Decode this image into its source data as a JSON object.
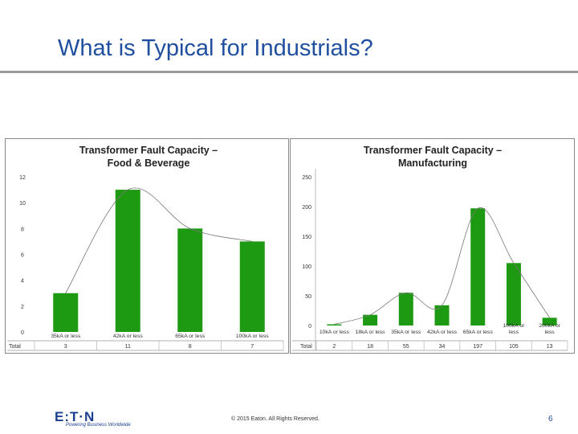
{
  "slide": {
    "title": "What is Typical for Industrials?",
    "footer": {
      "logo": "E:T·N",
      "tagline": "Powering Business Worldwide",
      "copyright": "© 2015 Eaton. All Rights Reserved.",
      "page_number": "6"
    }
  },
  "colors": {
    "bar": "#1d9a12",
    "title": "#1f4f9e",
    "trend": "#777777"
  },
  "chart_data": [
    {
      "type": "bar",
      "title_lines": [
        "Transformer Fault Capacity –",
        "Food & Beverage"
      ],
      "categories": [
        "35kA or less",
        "42kA or less",
        "65kA or less",
        "100kA or less"
      ],
      "values": [
        3,
        11,
        8,
        7
      ],
      "total_label": "Total",
      "totals": [
        "3",
        "11",
        "8",
        "7"
      ],
      "ylim": [
        0,
        12
      ],
      "yticks": [
        0,
        2,
        4,
        6,
        8,
        10,
        12
      ],
      "trendline": true
    },
    {
      "type": "bar",
      "title_lines": [
        "Transformer Fault Capacity –",
        "Manufacturing"
      ],
      "categories": [
        [
          "10kA or less"
        ],
        [
          "18kA or less"
        ],
        [
          "35kA or less"
        ],
        [
          "42kA or less"
        ],
        [
          "65kA or less"
        ],
        [
          "100kA or",
          "less"
        ],
        [
          "200kA or",
          "less"
        ]
      ],
      "values": [
        2,
        18,
        55,
        34,
        197,
        105,
        13
      ],
      "total_label": "Total",
      "totals": [
        "2",
        "18",
        "55",
        "34",
        "197",
        "105",
        "13"
      ],
      "ylim": [
        0,
        250
      ],
      "yticks": [
        0,
        50,
        100,
        150,
        200,
        250
      ],
      "trendline": true
    }
  ]
}
